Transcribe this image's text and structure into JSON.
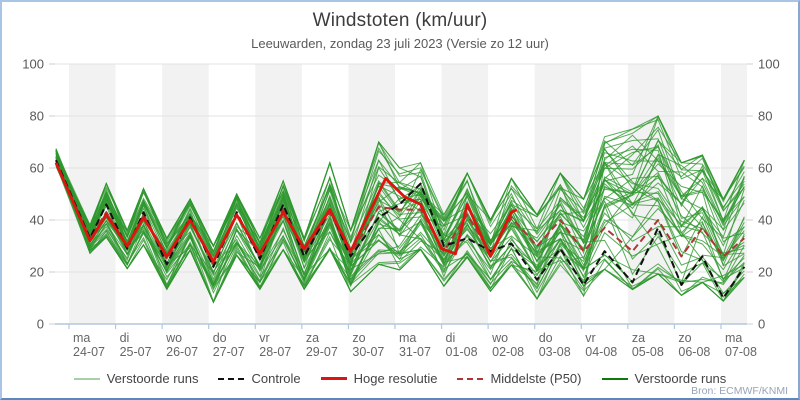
{
  "header": {
    "title": "Windstoten (km/uur)",
    "subtitle": "Leeuwarden, zondag 23 juli 2023 (Versie zo 12 uur)"
  },
  "attribution": "Bron: ECMWF/KNMI",
  "colors": {
    "band_gray": "#f2f2f2",
    "grid": "#e3e3e3",
    "axis": "#b3c7de",
    "tick": "#cfcfcf",
    "ensemble_green": "#2e972e",
    "control_black": "#111111",
    "hires_red": "#dd1510",
    "median_darkred": "#b03535",
    "legend_lightgreen": "#a8cfa8",
    "legend_darkgreen": "#0e7a0e"
  },
  "legend": [
    {
      "label": "Verstoorde runs",
      "color": "#a8cfa8",
      "dash": false,
      "width": 2
    },
    {
      "label": "Controle",
      "color": "#111111",
      "dash": true,
      "width": 2.5
    },
    {
      "label": "Hoge resolutie",
      "color": "#dd1510",
      "dash": false,
      "width": 3
    },
    {
      "label": "Middelste (P50)",
      "color": "#b03535",
      "dash": true,
      "width": 2.5
    },
    {
      "label": "Verstoorde runs",
      "color": "#0e7a0e",
      "dash": false,
      "width": 2.5
    }
  ],
  "axes": {
    "y_ticks": [
      0,
      20,
      40,
      60,
      80,
      100
    ],
    "x_days": [
      {
        "day": "ma",
        "date": "24-07"
      },
      {
        "day": "di",
        "date": "25-07"
      },
      {
        "day": "wo",
        "date": "26-07"
      },
      {
        "day": "do",
        "date": "27-07"
      },
      {
        "day": "vr",
        "date": "28-07"
      },
      {
        "day": "za",
        "date": "29-07"
      },
      {
        "day": "zo",
        "date": "30-07"
      },
      {
        "day": "ma",
        "date": "31-07"
      },
      {
        "day": "di",
        "date": "01-08"
      },
      {
        "day": "wo",
        "date": "02-08"
      },
      {
        "day": "do",
        "date": "03-08"
      },
      {
        "day": "vr",
        "date": "04-08"
      },
      {
        "day": "za",
        "date": "05-08"
      },
      {
        "day": "zo",
        "date": "06-08"
      },
      {
        "day": "ma",
        "date": "07-08"
      }
    ]
  },
  "chart_data": {
    "type": "line",
    "title": "Windstoten (km/uur)",
    "subtitle": "Leeuwarden, zondag 23 juli 2023 (Versie zo 12 uur)",
    "ylabel": "km/uur",
    "ylim": [
      0,
      100
    ],
    "x_unit": "days since 2023-07-24 00:00 (run start zo 23-07 12 uur)",
    "x_range": [
      -0.3,
      14.56
    ],
    "x_tick_days": [
      0,
      1,
      2,
      3,
      4,
      5,
      6,
      7,
      8,
      9,
      10,
      11,
      12,
      13,
      14
    ],
    "gray_band_days": [
      0,
      2,
      4,
      6,
      8,
      10,
      12,
      14
    ],
    "x": [
      -0.28,
      0.45,
      0.8,
      1.25,
      1.6,
      2.1,
      2.6,
      3.1,
      3.6,
      4.1,
      4.6,
      5.05,
      5.6,
      6.05,
      6.65,
      7.1,
      7.55,
      8.05,
      8.55,
      9.05,
      9.5,
      10.05,
      10.55,
      11.05,
      11.5,
      12.1,
      12.65,
      13.15,
      13.6,
      14.05,
      14.5
    ],
    "series": [
      {
        "name": "Controle",
        "color": "#111111",
        "dash": true,
        "width": 2,
        "y": [
          63,
          33,
          46,
          29,
          43,
          23,
          41,
          22,
          43,
          25,
          46,
          26,
          44,
          26,
          41,
          46,
          54,
          30,
          33,
          28,
          31,
          17,
          29,
          15,
          28,
          16,
          37,
          15,
          26,
          10,
          22
        ]
      },
      {
        "name": "Middelste (P50)",
        "color": "#b03535",
        "dash": true,
        "width": 2,
        "y": [
          62,
          33,
          43,
          30,
          42,
          25,
          40,
          23,
          42,
          26,
          44,
          27,
          43,
          27,
          45,
          44,
          44,
          28,
          42,
          27,
          41,
          30,
          40,
          28,
          37,
          28,
          40,
          26,
          37,
          26,
          33
        ]
      },
      {
        "name": "Hoge resolutie",
        "color": "#dd1510",
        "dash": false,
        "width": 2.8,
        "x": [
          -0.28,
          0.45,
          0.8,
          1.25,
          1.6,
          2.1,
          2.6,
          3.1,
          3.6,
          4.1,
          4.6,
          5.05,
          5.6,
          6.05,
          6.8,
          7.2,
          7.55,
          8.0,
          8.3,
          8.55,
          9.05,
          9.5,
          9.62
        ],
        "y": [
          62,
          32,
          42,
          30,
          41,
          26,
          40,
          24,
          42,
          27,
          43,
          29,
          44,
          28,
          56,
          49,
          46,
          29,
          27,
          46,
          26,
          43,
          44
        ]
      }
    ],
    "ensemble": {
      "name": "Verstoorde runs",
      "count": 50,
      "color": "#2e972e",
      "min": [
        58,
        27,
        33,
        21,
        30,
        13,
        28,
        8,
        26,
        13,
        28,
        13,
        28,
        12,
        22,
        20,
        28,
        14,
        25,
        12,
        22,
        9,
        22,
        10,
        20,
        12,
        18,
        10,
        15,
        8,
        17
      ],
      "max": [
        70,
        38,
        54,
        36,
        52,
        33,
        48,
        30,
        50,
        33,
        55,
        33,
        62,
        36,
        70,
        60,
        62,
        42,
        58,
        40,
        56,
        42,
        58,
        48,
        72,
        75,
        80,
        62,
        65,
        48,
        63
      ]
    }
  }
}
